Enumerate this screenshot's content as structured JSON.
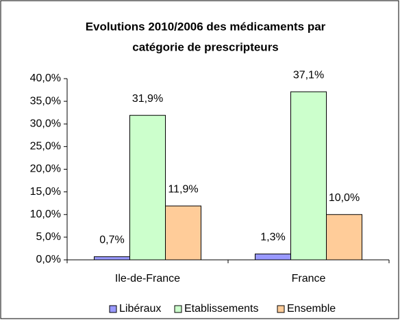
{
  "chart_data": {
    "type": "bar",
    "title": [
      "Evolutions 2010/2006 des médicaments par",
      "catégorie de prescripteurs"
    ],
    "categories": [
      "Ile-de-France",
      "France"
    ],
    "series": [
      {
        "name": "Libéraux",
        "color": "#9999ff",
        "values": [
          0.7,
          1.3
        ],
        "value_labels": [
          "0,7%",
          "1,3%"
        ]
      },
      {
        "name": "Etablissements",
        "color": "#ccffcc",
        "values": [
          31.9,
          37.1
        ],
        "value_labels": [
          "31,9%",
          "37,1%"
        ]
      },
      {
        "name": "Ensemble",
        "color": "#ffcc99",
        "values": [
          11.9,
          10.0
        ],
        "value_labels": [
          "11,9%",
          "10,0%"
        ]
      }
    ],
    "ylim": [
      0,
      40
    ],
    "yticks": [
      {
        "value": 0,
        "label": "0,0%"
      },
      {
        "value": 5,
        "label": "5,0%"
      },
      {
        "value": 10,
        "label": "10,0%"
      },
      {
        "value": 15,
        "label": "15,0%"
      },
      {
        "value": 20,
        "label": "20,0%"
      },
      {
        "value": 25,
        "label": "25,0%"
      },
      {
        "value": 30,
        "label": "30,0%"
      },
      {
        "value": 35,
        "label": "35,0%"
      },
      {
        "value": 40,
        "label": "40,0%"
      }
    ],
    "legend": "bottom"
  }
}
